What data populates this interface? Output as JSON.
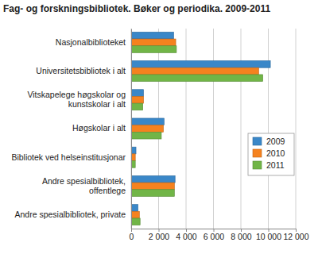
{
  "chart_data": {
    "type": "bar",
    "orientation": "horizontal",
    "title": "Fag- og forskningsbibliotek. Bøker og periodika. 2009-2011",
    "categories": [
      "Nasjonalbiblioteket",
      "Universitetsbibliotek i alt",
      "Vitskapelege høgskolar og kunstskolar i alt",
      "Høgskolar i alt",
      "Bibliotek ved helseinstitusjonar",
      "Andre spesialbibliotek, offentlege",
      "Andre spesialbibliotek, private"
    ],
    "series": [
      {
        "name": "2009",
        "color": "#3a87c8",
        "values": [
          3100,
          10150,
          900,
          2400,
          350,
          3200,
          500
        ]
      },
      {
        "name": "2010",
        "color": "#f5821f",
        "values": [
          3250,
          9300,
          900,
          2350,
          300,
          3150,
          600
        ]
      },
      {
        "name": "2011",
        "color": "#71b547",
        "values": [
          3300,
          9600,
          850,
          2200,
          300,
          3150,
          650
        ]
      }
    ],
    "xlim": [
      0,
      12000
    ],
    "xticks": [
      0,
      {
        "value": 2000,
        "label": "2 000"
      },
      {
        "value": 4000,
        "label": "4 000"
      },
      {
        "value": 6000,
        "label": "6 000"
      },
      {
        "value": 8000,
        "label": "8 000"
      },
      {
        "value": 10000,
        "label": "10 000"
      },
      {
        "value": 12000,
        "label": "12 000"
      }
    ],
    "grid": true,
    "legend": "right"
  }
}
